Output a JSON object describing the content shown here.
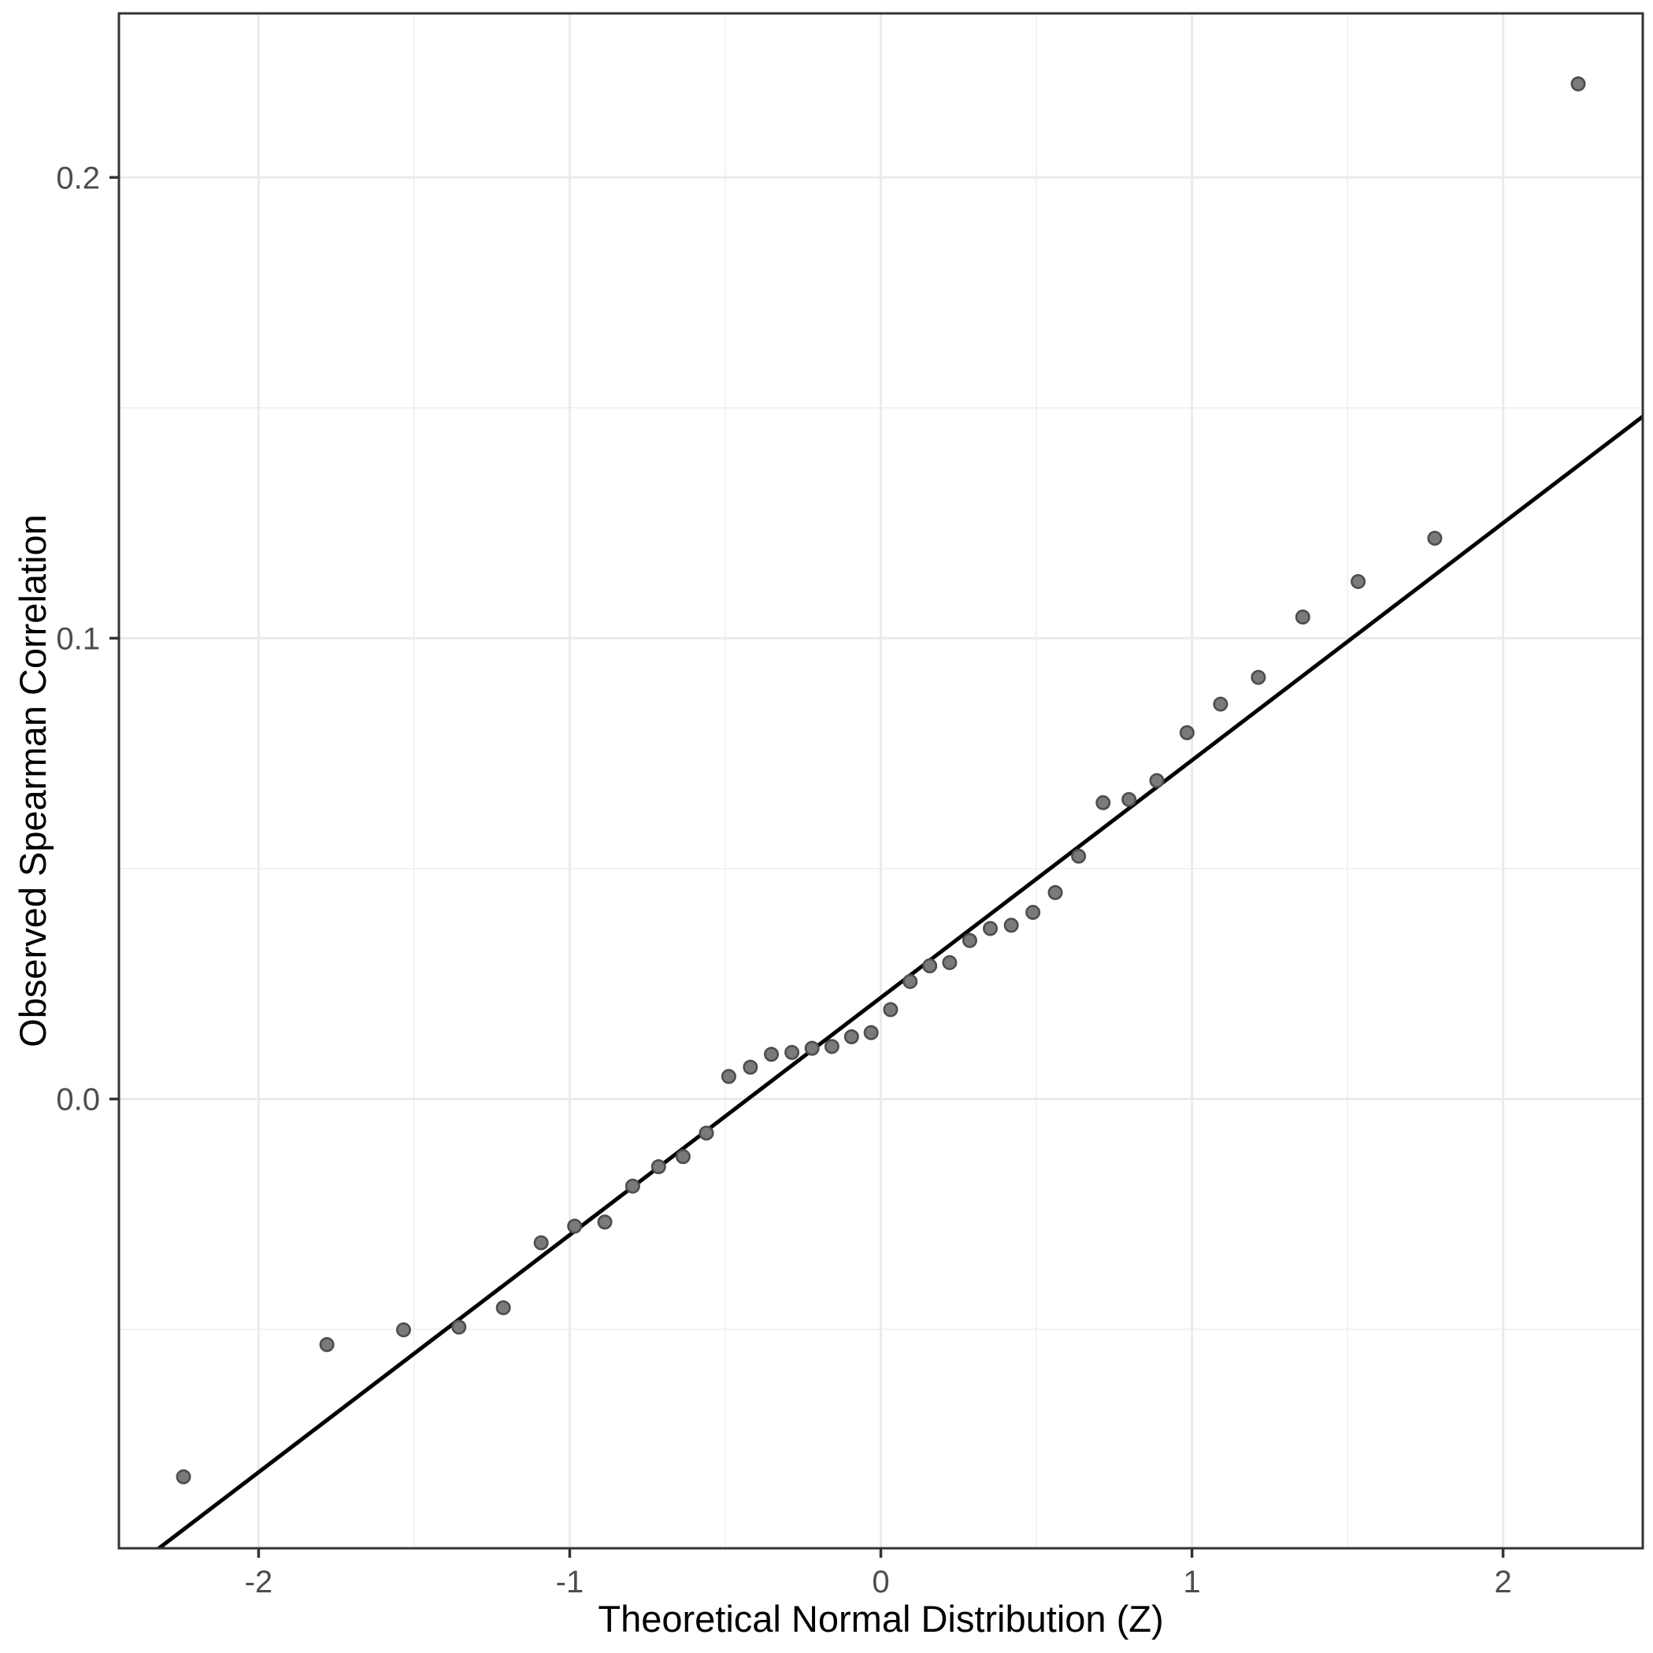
{
  "figure": {
    "x_axis_title": "Theoretical Normal Distribution (Z)",
    "y_axis_title": "Observed Spearman Correlation"
  },
  "chart_data": {
    "type": "scatter",
    "title": "",
    "xlabel": "Theoretical Normal Distribution (Z)",
    "ylabel": "Observed Spearman Correlation",
    "x_domain": [
      -2.449,
      2.449
    ],
    "y_domain": [
      -0.0975,
      0.2356
    ],
    "x_tick_values": [
      -2,
      -1,
      0,
      1,
      2
    ],
    "x_tick_labels": [
      "-2",
      "-1",
      "0",
      "1",
      "2"
    ],
    "x_minor_gridlines": [
      -1.5,
      -0.5,
      0.5,
      1.5
    ],
    "y_tick_values": [
      0.0,
      0.1,
      0.2
    ],
    "y_tick_labels": [
      "0.0",
      "0.1",
      "0.2"
    ],
    "y_minor_gridlines": [
      -0.05,
      0.05,
      0.15
    ],
    "grid": true,
    "legend": "none",
    "points": {
      "x": [
        -2.2414,
        -1.7805,
        -1.5341,
        -1.3562,
        -1.2134,
        -1.0919,
        -0.9842,
        -0.8871,
        -0.7976,
        -0.7144,
        -0.6356,
        -0.5607,
        -0.4888,
        -0.4193,
        -0.3518,
        -0.2858,
        -0.2211,
        -0.1573,
        -0.0941,
        -0.0313,
        0.0313,
        0.0941,
        0.1573,
        0.2211,
        0.2858,
        0.3518,
        0.4193,
        0.4888,
        0.5607,
        0.6356,
        0.7144,
        0.7976,
        0.8871,
        0.9842,
        1.0919,
        1.2134,
        1.3562,
        1.5341,
        1.7805,
        2.2414
      ],
      "y": [
        -0.082,
        -0.0533,
        -0.0501,
        -0.0495,
        -0.0453,
        -0.0312,
        -0.0276,
        -0.0267,
        -0.0189,
        -0.0147,
        -0.0125,
        -0.0074,
        0.0049,
        0.0069,
        0.0097,
        0.0101,
        0.011,
        0.0114,
        0.0135,
        0.0144,
        0.0194,
        0.0255,
        0.0289,
        0.0296,
        0.0344,
        0.037,
        0.0377,
        0.0405,
        0.0448,
        0.0527,
        0.0643,
        0.065,
        0.0691,
        0.0795,
        0.0857,
        0.0915,
        0.1046,
        0.1123,
        0.1217,
        0.2203
      ]
    },
    "reference_line": {
      "slope": 0.0515,
      "intercept": 0.022
    },
    "style": {
      "point_fill": "#7A7A7A",
      "point_stroke": "#4D4D4D",
      "reference_line_color": "#000000",
      "major_grid_color": "#EBEBEB",
      "minor_grid_color": "#EFEFEF",
      "panel_border_color": "#333333",
      "tick_color": "#333333",
      "tick_label_color": "#4D4D4D",
      "axis_title_color": "#000000",
      "background": "#FFFFFF"
    }
  }
}
